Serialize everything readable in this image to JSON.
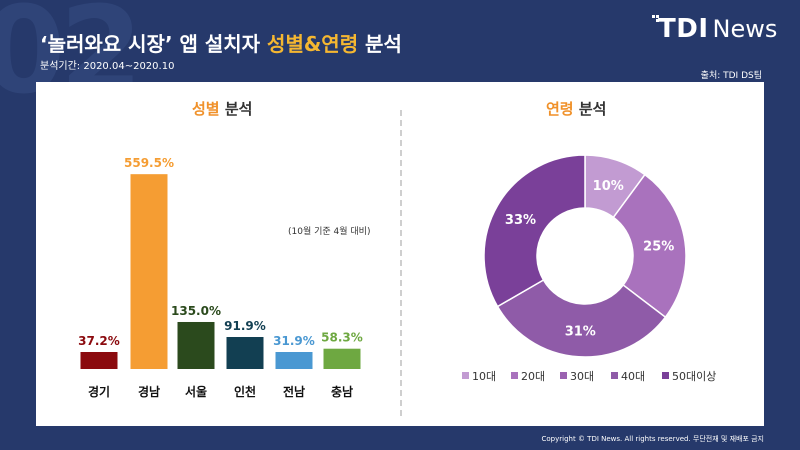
{
  "slide_number": "02",
  "title": {
    "part1": "‘놀러와요 시장’ 앱 설치자 ",
    "highlight": "성별&연령",
    "part2": " 분석"
  },
  "period": "분석기간: 2020.04~2020.10",
  "source": "출처: TDI DS팀",
  "logo": {
    "tdi": "TDI",
    "news": "News"
  },
  "left_section": {
    "title_accent": "성별",
    "title_rest": " 분석",
    "note": "(10월 기준 4월 대비)"
  },
  "right_section": {
    "title_accent": "연령",
    "title_rest": " 분석"
  },
  "footer": "Copyright © TDI News. All rights reserved. 무단전재 및 재배포 금지",
  "chart_data": [
    {
      "type": "bar",
      "categories": [
        "경기",
        "경남",
        "서울",
        "인천",
        "전남",
        "충남"
      ],
      "values": [
        37.2,
        559.5,
        135.0,
        91.9,
        31.9,
        58.3
      ],
      "labels": [
        "37.2%",
        "559.5%",
        "135.0%",
        "91.9%",
        "31.9%",
        "58.3%"
      ],
      "colors": [
        "#8b0a0e",
        "#f59d33",
        "#2b4a1d",
        "#123f52",
        "#4a98d2",
        "#6ea841"
      ],
      "label_colors": [
        "#8b0a0e",
        "#f59d33",
        "#2b4a1d",
        "#123f52",
        "#4a98d2",
        "#6ea841"
      ],
      "title": "성별 분석",
      "ylim": [
        0,
        560
      ]
    },
    {
      "type": "pie",
      "donut": true,
      "categories": [
        "10대",
        "20대",
        "30대",
        "40대",
        "50대이상"
      ],
      "values": [
        10,
        25,
        31,
        33
      ],
      "slice_categories": [
        "10대",
        "20대",
        "40대",
        "50대이상"
      ],
      "labels": [
        "10%",
        "25%",
        "31%",
        "33%"
      ],
      "colors": [
        "#c29bd2",
        "#a972bd",
        "#8f5ba8",
        "#7a4099"
      ],
      "legend_colors": [
        "#c29bd2",
        "#a972bd",
        "#9a62b0",
        "#8f5ba8",
        "#7a4099"
      ],
      "title": "연령 분석",
      "legend": "bottom"
    }
  ]
}
